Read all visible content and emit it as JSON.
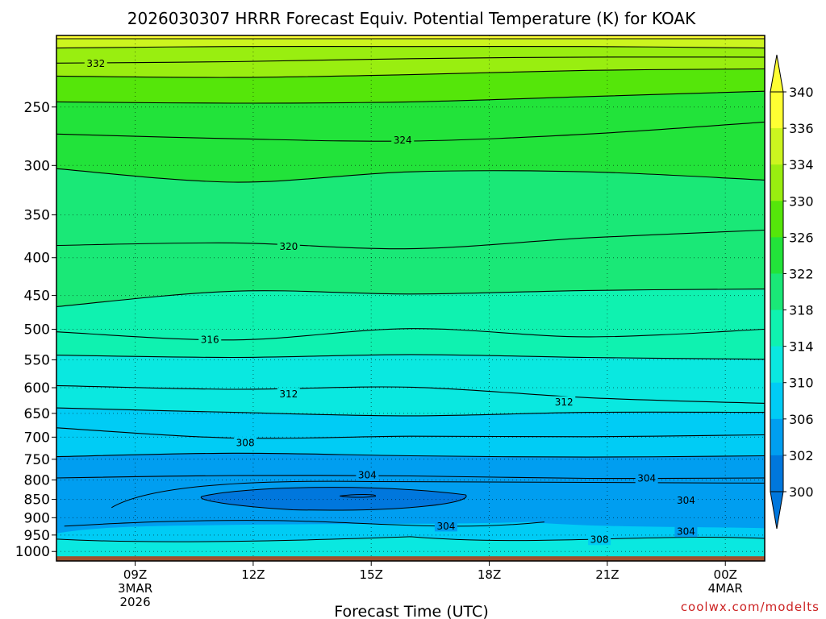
{
  "chart_data": {
    "type": "heatmap",
    "title": "2026030307 HRRR Forecast Equiv. Potential Temperature (K) for KOAK",
    "xlabel": "Forecast Time (UTC)",
    "ylabel": "",
    "x_ticks": [
      {
        "hour": 9,
        "lines": [
          "09Z",
          "3MAR",
          "2026"
        ]
      },
      {
        "hour": 12,
        "lines": [
          "12Z"
        ]
      },
      {
        "hour": 15,
        "lines": [
          "15Z"
        ]
      },
      {
        "hour": 18,
        "lines": [
          "18Z"
        ]
      },
      {
        "hour": 21,
        "lines": [
          "21Z"
        ]
      },
      {
        "hour": 24,
        "lines": [
          "00Z",
          "4MAR"
        ]
      }
    ],
    "x_range_hours": [
      7,
      25
    ],
    "y_axis": "pressure (hPa), log scale, top to bottom",
    "y_range": [
      200,
      1030
    ],
    "y_ticks": [
      250,
      300,
      350,
      400,
      450,
      500,
      550,
      600,
      650,
      700,
      750,
      800,
      850,
      900,
      950,
      1000
    ],
    "colorbar": {
      "ticks": [
        340,
        336,
        334,
        330,
        326,
        322,
        318,
        314,
        310,
        306,
        302,
        300
      ],
      "bands": [
        {
          "min": 338,
          "color": "#ffff33"
        },
        {
          "min": 334,
          "color": "#ccf51f"
        },
        {
          "min": 330,
          "color": "#99ee10"
        },
        {
          "min": 326,
          "color": "#55e60a"
        },
        {
          "min": 322,
          "color": "#22e33a"
        },
        {
          "min": 318,
          "color": "#1ae877"
        },
        {
          "min": 314,
          "color": "#0ff2b0"
        },
        {
          "min": 310,
          "color": "#0ae8e0"
        },
        {
          "min": 306,
          "color": "#00ccf5"
        },
        {
          "min": 302,
          "color": "#009ef0"
        },
        {
          "min": 0,
          "color": "#0077dd"
        }
      ]
    },
    "contour_labels": [
      {
        "value": "332",
        "hour": 8.0,
        "p": 218
      },
      {
        "value": "324",
        "hour": 15.8,
        "p": 277
      },
      {
        "value": "320",
        "hour": 12.9,
        "p": 386
      },
      {
        "value": "316",
        "hour": 10.9,
        "p": 516
      },
      {
        "value": "312",
        "hour": 12.9,
        "p": 611
      },
      {
        "value": "312",
        "hour": 19.9,
        "p": 627
      },
      {
        "value": "308",
        "hour": 11.8,
        "p": 712
      },
      {
        "value": "304",
        "hour": 14.9,
        "p": 787
      },
      {
        "value": "304",
        "hour": 22.0,
        "p": 795
      },
      {
        "value": "304",
        "hour": 23.0,
        "p": 852
      },
      {
        "value": "304",
        "hour": 16.9,
        "p": 923
      },
      {
        "value": "304",
        "hour": 23.0,
        "p": 939
      },
      {
        "value": "308",
        "hour": 20.8,
        "p": 963
      }
    ],
    "levels": [
      {
        "value": 336,
        "p": [
          202,
          202,
          202,
          202,
          202
        ]
      },
      {
        "value": 334,
        "p": [
          208,
          207,
          207,
          207,
          208
        ]
      },
      {
        "value": 332,
        "p": [
          218,
          217,
          215,
          214,
          214
        ]
      },
      {
        "value": 330,
        "p": [
          227,
          228,
          226,
          223,
          222
        ]
      },
      {
        "value": 326,
        "p": [
          246,
          247,
          246,
          242,
          238
        ]
      },
      {
        "value": 324,
        "p": [
          272,
          276,
          278,
          272,
          262
        ]
      },
      {
        "value": 322,
        "p": [
          303,
          316,
          306,
          306,
          314
        ]
      },
      {
        "value": 320,
        "p": [
          385,
          382,
          389,
          376,
          367
        ]
      },
      {
        "value": 318,
        "p": [
          466,
          444,
          448,
          443,
          441
        ]
      },
      {
        "value": 316,
        "p": [
          504,
          517,
          499,
          512,
          500
        ]
      },
      {
        "value": 314,
        "p": [
          542,
          546,
          541,
          546,
          549
        ]
      },
      {
        "value": 312,
        "p": [
          596,
          603,
          599,
          619,
          630
        ]
      },
      {
        "value": 310,
        "p": [
          639,
          648,
          655,
          648,
          648
        ]
      },
      {
        "value": 308,
        "p": [
          680,
          702,
          698,
          699,
          695
        ]
      },
      {
        "value": 306,
        "p": [
          744,
          736,
          742,
          745,
          742
        ]
      },
      {
        "value": 304,
        "p": [
          795,
          789,
          790,
          796,
          795
        ]
      }
    ],
    "surface_pressure": 1015
  },
  "credit": "coolwx.com/modelts"
}
